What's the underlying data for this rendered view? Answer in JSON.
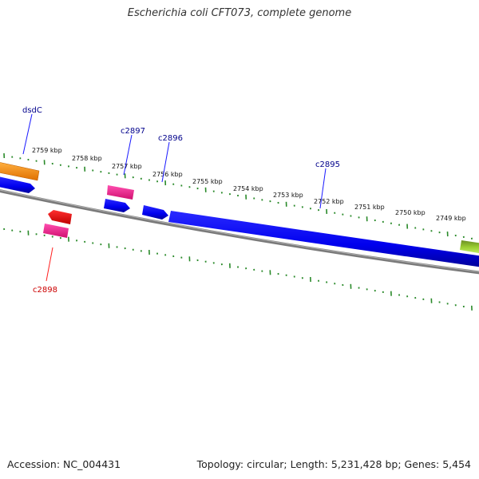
{
  "title": "Escherichia coli CFT073, complete genome",
  "footer": {
    "accession": "Accession: NC_004431",
    "summary": "Topology: circular; Length: 5,231,428 bp; Genes: 5,454"
  },
  "colors": {
    "backbone": "#808080",
    "ticks": "#2a8a2a",
    "cds_forward": "#0000ff",
    "cds_reverse_red": "#ff0000",
    "cds_pink": "#ff1493",
    "cds_orange": "#ff8c00",
    "cds_green": "#7cb342",
    "label_forward": "#00008b",
    "label_reverse": "#cc0000"
  },
  "scale_labels": [
    "2759 kbp",
    "2758 kbp",
    "2757 kbp",
    "2756 kbp",
    "2755 kbp",
    "2754 kbp",
    "2753 kbp",
    "2752 kbp",
    "2751 kbp",
    "2750 kbp",
    "2749 kbp"
  ],
  "gene_labels": [
    {
      "name": "dsdC",
      "strand": "forward"
    },
    {
      "name": "c2897",
      "strand": "forward"
    },
    {
      "name": "c2896",
      "strand": "forward"
    },
    {
      "name": "c2895",
      "strand": "forward"
    },
    {
      "name": "c2898",
      "strand": "reverse"
    }
  ]
}
